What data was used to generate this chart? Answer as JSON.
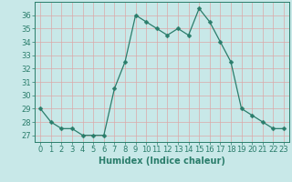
{
  "x": [
    0,
    1,
    2,
    3,
    4,
    5,
    6,
    7,
    8,
    9,
    10,
    11,
    12,
    13,
    14,
    15,
    16,
    17,
    18,
    19,
    20,
    21,
    22,
    23
  ],
  "y": [
    29,
    28,
    27.5,
    27.5,
    27,
    27,
    27,
    30.5,
    32.5,
    36,
    35.5,
    35,
    34.5,
    35,
    34.5,
    36.5,
    35.5,
    34,
    32.5,
    29,
    28.5,
    28,
    27.5,
    27.5
  ],
  "line_color": "#2a7d6b",
  "marker": "D",
  "marker_size": 2.5,
  "bg_color": "#c8e8e8",
  "grid_color": "#e8f8f8",
  "xlabel": "Humidex (Indice chaleur)",
  "ylim": [
    26.5,
    37
  ],
  "xlim": [
    -0.5,
    23.5
  ],
  "yticks": [
    27,
    28,
    29,
    30,
    31,
    32,
    33,
    34,
    35,
    36
  ],
  "xticks": [
    0,
    1,
    2,
    3,
    4,
    5,
    6,
    7,
    8,
    9,
    10,
    11,
    12,
    13,
    14,
    15,
    16,
    17,
    18,
    19,
    20,
    21,
    22,
    23
  ],
  "label_fontsize": 7,
  "tick_fontsize": 6
}
